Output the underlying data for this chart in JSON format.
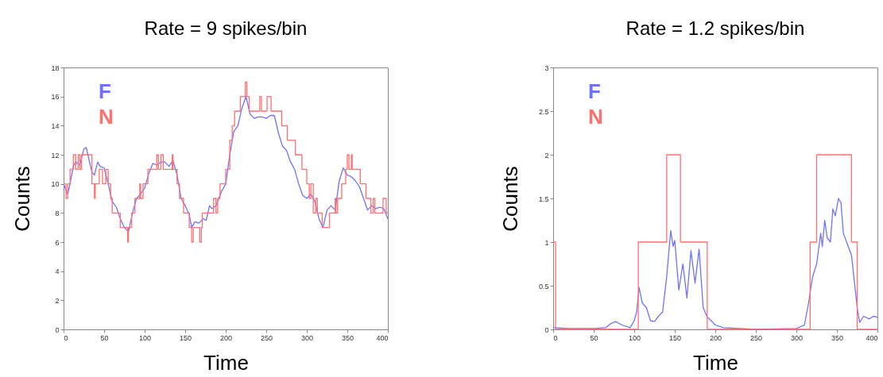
{
  "chart_data": [
    {
      "type": "line",
      "title": "Rate = 9 spikes/bin",
      "xlabel": "Time",
      "ylabel": "Counts",
      "xlim": [
        0,
        400
      ],
      "xticks": [
        0,
        50,
        100,
        150,
        200,
        250,
        300,
        350,
        400
      ],
      "ylim": [
        0,
        18
      ],
      "yticks": [
        0,
        2,
        4,
        6,
        8,
        10,
        12,
        14,
        16,
        18
      ],
      "legend": "top left",
      "series": [
        {
          "name": "F",
          "color": "#7070ff",
          "type": "line",
          "x": [
            0,
            5,
            8,
            12,
            15,
            20,
            25,
            28,
            32,
            35,
            38,
            42,
            45,
            50,
            55,
            60,
            65,
            70,
            75,
            80,
            85,
            90,
            95,
            100,
            105,
            110,
            115,
            120,
            125,
            130,
            135,
            140,
            145,
            150,
            155,
            158,
            162,
            167,
            172,
            176,
            180,
            183,
            188,
            195,
            200,
            205,
            210,
            215,
            220,
            225,
            230,
            235,
            240,
            245,
            250,
            255,
            260,
            265,
            270,
            275,
            280,
            285,
            290,
            295,
            300,
            305,
            310,
            315,
            320,
            325,
            330,
            335,
            340,
            345,
            350,
            355,
            360,
            365,
            370,
            375,
            380,
            385,
            390,
            395,
            400
          ],
          "values": [
            10,
            9.3,
            10,
            11.2,
            11.5,
            11.3,
            12.4,
            12.5,
            11.5,
            10.8,
            10.6,
            11.5,
            11.2,
            11.1,
            10,
            8.8,
            8.4,
            7.6,
            7,
            6.7,
            8,
            9,
            9.3,
            9.7,
            10.7,
            11.4,
            11.3,
            11.5,
            11.5,
            11.2,
            11.6,
            10.6,
            9,
            8.5,
            7.9,
            7,
            7.4,
            7.3,
            7.6,
            7.5,
            8.5,
            8.3,
            8.5,
            9.5,
            10,
            12,
            13.6,
            14,
            15.2,
            16,
            14.8,
            14.5,
            14.6,
            14.6,
            14.5,
            14.7,
            14.7,
            13.5,
            12.6,
            12.3,
            11.5,
            11,
            10,
            9.2,
            9,
            9.3,
            8.8,
            7.6,
            7,
            8.2,
            8.5,
            8.2,
            10.2,
            11.1,
            10.6,
            10.5,
            10.2,
            9.8,
            9,
            8.2,
            8.5,
            8.3,
            8.4,
            8.3,
            7.6
          ]
        },
        {
          "name": "N",
          "color": "#ff7070",
          "type": "step",
          "x": [
            0,
            3,
            5,
            8,
            12,
            15,
            18,
            20,
            22,
            35,
            38,
            39,
            44,
            48,
            52,
            55,
            58,
            60,
            67,
            70,
            77,
            79,
            80,
            84,
            88,
            94,
            95,
            98,
            104,
            115,
            117,
            120,
            123,
            134,
            135,
            140,
            143,
            148,
            155,
            158,
            160,
            165,
            168,
            170,
            171,
            185,
            188,
            190,
            193,
            200,
            205,
            208,
            211,
            218,
            224,
            226,
            229,
            242,
            244,
            251,
            256,
            269,
            276,
            286,
            294,
            300,
            303,
            305,
            308,
            311,
            313,
            319,
            328,
            335,
            336,
            338,
            343,
            348,
            350,
            352,
            355,
            356,
            366,
            373,
            379,
            382,
            384,
            390,
            394,
            398,
            400
          ],
          "values": [
            10,
            9,
            10,
            11,
            12,
            11,
            12,
            11,
            12,
            10,
            9,
            10,
            11,
            10,
            11,
            10,
            9,
            8,
            8,
            7,
            7,
            6,
            7,
            8,
            9,
            10,
            9,
            10,
            11,
            12,
            11,
            12,
            11,
            12,
            11,
            10,
            9,
            8,
            7,
            6,
            7,
            7,
            6,
            7,
            8,
            9,
            8,
            9,
            10,
            11,
            13,
            14,
            15,
            16,
            17,
            16,
            15,
            16,
            15,
            16,
            15,
            14,
            13,
            12,
            11,
            10,
            9,
            10,
            8,
            9,
            8,
            7,
            8,
            9,
            8,
            9,
            10,
            11,
            12,
            11,
            12,
            11,
            10,
            9,
            8,
            9,
            8,
            8,
            9,
            8,
            8
          ]
        }
      ]
    },
    {
      "type": "line",
      "title": "Rate = 1.2 spikes/bin",
      "xlabel": "Time",
      "ylabel": "Counts",
      "xlim": [
        0,
        400
      ],
      "xticks": [
        0,
        50,
        100,
        150,
        200,
        250,
        300,
        350,
        400
      ],
      "ylim": [
        0,
        3
      ],
      "yticks": [
        0,
        0.5,
        1,
        1.5,
        2,
        2.5,
        3
      ],
      "legend": "top left",
      "series": [
        {
          "name": "F",
          "color": "#7070ff",
          "type": "line",
          "x": [
            0,
            20,
            50,
            65,
            70,
            77,
            85,
            95,
            100,
            103,
            106,
            110,
            115,
            120,
            125,
            130,
            135,
            140,
            145,
            148,
            150,
            155,
            160,
            165,
            170,
            175,
            180,
            185,
            190,
            195,
            200,
            210,
            250,
            300,
            310,
            315,
            320,
            325,
            330,
            332,
            335,
            338,
            342,
            345,
            348,
            352,
            355,
            358,
            362,
            368,
            375,
            378,
            383,
            390,
            395,
            400
          ],
          "values": [
            0.02,
            0.01,
            0.01,
            0.02,
            0.06,
            0.09,
            0.05,
            0.02,
            0.1,
            0.2,
            0.48,
            0.3,
            0.25,
            0.1,
            0.09,
            0.15,
            0.2,
            0.6,
            1.13,
            0.95,
            1.02,
            0.45,
            0.75,
            0.36,
            0.9,
            0.53,
            0.92,
            0.25,
            0.14,
            0.1,
            0.05,
            0.02,
            0,
            0.01,
            0.05,
            0.3,
            0.6,
            0.75,
            1.1,
            0.95,
            1.25,
            1.05,
            1,
            1.38,
            1.3,
            1.5,
            1.45,
            1.1,
            1,
            0.85,
            0.25,
            0.08,
            0.15,
            0.12,
            0.15,
            0.14
          ]
        },
        {
          "name": "N",
          "color": "#ff7070",
          "type": "step",
          "x": [
            0,
            3,
            105,
            140,
            157,
            190,
            317,
            325,
            368,
            375,
            400
          ],
          "values": [
            1,
            0,
            1,
            2,
            1,
            0,
            1,
            2,
            1,
            0,
            0
          ]
        }
      ]
    }
  ]
}
